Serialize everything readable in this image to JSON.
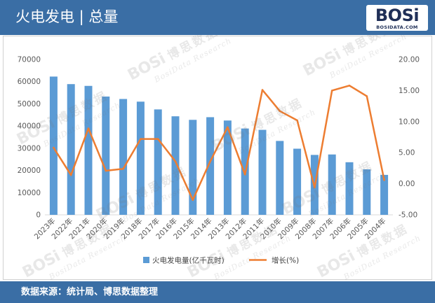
{
  "header": {
    "title": "火电发电 | 总量"
  },
  "logo": {
    "brand": "BOSi",
    "site": "BOSIDATA.COM"
  },
  "watermark": {
    "brand": "BOSi",
    "cn": "博思数据",
    "en": "BosiData Research"
  },
  "footer": {
    "source": "数据来源：统计局、博思数据整理"
  },
  "colors": {
    "header_bg": "#3a6ea5",
    "footer_bg": "#3a6ea5",
    "logo_text": "#1f2f57"
  },
  "chart_data": {
    "type": "bar",
    "categories": [
      "2023年",
      "2022年",
      "2021年",
      "2020年",
      "2019年",
      "2018年",
      "2017年",
      "2016年",
      "2015年",
      "2014年",
      "2013年",
      "2012年",
      "2011年",
      "2010年",
      "2009年",
      "2008年",
      "2007年",
      "2006年",
      "2005年",
      "2004年"
    ],
    "series": [
      {
        "name": "火电发电量(亿千瓦时)",
        "type": "bar",
        "axis": "left",
        "color": "#5b9bd5",
        "values": [
          62300,
          58900,
          58100,
          53300,
          52200,
          51000,
          47500,
          44400,
          42800,
          44000,
          42500,
          38900,
          38300,
          33300,
          29800,
          27000,
          27200,
          23700,
          20500,
          18000
        ]
      },
      {
        "name": "增长(%)",
        "type": "line",
        "axis": "right",
        "color": "#ed7d31",
        "values": [
          5.8,
          1.4,
          8.9,
          2.1,
          2.4,
          7.2,
          7.2,
          3.6,
          -2.6,
          3.6,
          9.1,
          1.5,
          15.1,
          11.7,
          10.2,
          -0.6,
          15.0,
          15.8,
          14.1,
          0.6
        ]
      }
    ],
    "y_left": {
      "range": [
        0,
        70000
      ],
      "ticks": [
        "70000",
        "60000",
        "50000",
        "40000",
        "30000",
        "20000",
        "10000",
        "0"
      ]
    },
    "y_right": {
      "range": [
        -5,
        20
      ],
      "ticks": [
        "20.00",
        "15.00",
        "10.00",
        "5.00",
        "0.00",
        "-5.00"
      ]
    },
    "grid": false,
    "legend": "bottom"
  }
}
